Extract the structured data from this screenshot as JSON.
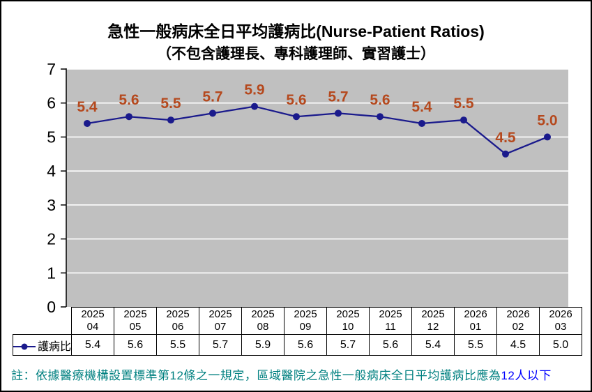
{
  "title": "急性一般病床全日平均護病比(Nurse-Patient Ratios)",
  "subtitle": "（不包含護理長、專科護理師、實習護士）",
  "chart_data": {
    "type": "line",
    "title": "急性一般病床全日平均護病比(Nurse-Patient Ratios)",
    "subtitle": "（不包含護理長、專科護理師、實習護士）",
    "categories": [
      {
        "year": "2025",
        "month": "04"
      },
      {
        "year": "2025",
        "month": "05"
      },
      {
        "year": "2025",
        "month": "06"
      },
      {
        "year": "2025",
        "month": "07"
      },
      {
        "year": "2025",
        "month": "08"
      },
      {
        "year": "2025",
        "month": "09"
      },
      {
        "year": "2025",
        "month": "10"
      },
      {
        "year": "2025",
        "month": "11"
      },
      {
        "year": "2025",
        "month": "12"
      },
      {
        "year": "2026",
        "month": "01"
      },
      {
        "year": "2026",
        "month": "02"
      },
      {
        "year": "2026",
        "month": "03"
      }
    ],
    "series": [
      {
        "name": "護病比",
        "values": [
          5.4,
          5.6,
          5.5,
          5.7,
          5.9,
          5.6,
          5.7,
          5.6,
          5.4,
          5.5,
          4.5,
          5.0
        ],
        "data_labels": [
          "5.4",
          "5.6",
          "5.5",
          "5.7",
          "5.9",
          "5.6",
          "5.7",
          "5.6",
          "5.4",
          "5.5",
          "4.5",
          "5.0"
        ]
      }
    ],
    "xlabel": "",
    "ylabel": "",
    "ylim": [
      0,
      7
    ],
    "yticks": [
      "0",
      "1",
      "2",
      "3",
      "4",
      "5",
      "6",
      "7"
    ],
    "grid": true,
    "legend_position": "data-table-left",
    "data_table_shown": true
  },
  "colors": {
    "plot_background": "#C0C0C0",
    "gridline": "#FFFFFF",
    "axis": "#000000",
    "series_line": "#1A1A8C",
    "marker": "#1A1A8C",
    "data_label": "#B5491E",
    "note_main": "#008080",
    "note_highlight": "#0000FF"
  },
  "legend": {
    "series_label": "護病比"
  },
  "note": {
    "main": "註：依據醫療機構設置標準第12條之一規定，區域醫院之急性一般病床全日平均護病比應為",
    "highlight": "12人以下"
  }
}
